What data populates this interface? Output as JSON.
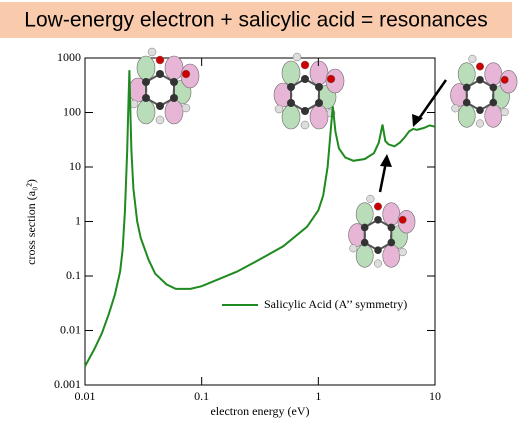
{
  "chart_data": {
    "type": "line",
    "title": "Low-energy electron + salicylic acid = resonances",
    "x_label": "electron energy (eV)",
    "y_label": "cross section (a₀²)",
    "log_x": true,
    "log_y": true,
    "legend": true,
    "xlim": [
      0.01,
      10
    ],
    "xticks": [
      0.01,
      0.1,
      1,
      10
    ],
    "ylim": [
      0.001,
      1000
    ],
    "yticks": [
      0.001,
      0.01,
      0.1,
      1,
      10,
      100,
      1000
    ],
    "x": [
      0.01,
      0.012,
      0.014,
      0.016,
      0.018,
      0.02,
      0.021,
      0.022,
      0.023,
      0.0235,
      0.024,
      0.0245,
      0.025,
      0.026,
      0.028,
      0.03,
      0.035,
      0.04,
      0.05,
      0.06,
      0.08,
      0.1,
      0.2,
      0.3,
      0.5,
      0.8,
      1.0,
      1.1,
      1.2,
      1.27,
      1.33,
      1.4,
      1.5,
      1.7,
      2.0,
      2.5,
      3.0,
      3.3,
      3.55,
      3.75,
      4.0,
      4.5,
      5.0,
      5.5,
      6.0,
      6.5,
      7.0,
      8.0,
      9.0,
      10
    ],
    "series": [
      {
        "name": "Salicylic Acid (A’’ symmetry)",
        "color": "#1f8a1f",
        "values": [
          0.0022,
          0.0045,
          0.009,
          0.02,
          0.045,
          0.12,
          0.3,
          1.5,
          20,
          120,
          600,
          100,
          20,
          4,
          1,
          0.5,
          0.2,
          0.11,
          0.07,
          0.058,
          0.058,
          0.065,
          0.12,
          0.19,
          0.35,
          0.8,
          1.6,
          3,
          10,
          40,
          130,
          45,
          22,
          15,
          13,
          14,
          18,
          28,
          60,
          30,
          26,
          24,
          28,
          35,
          45,
          50,
          48,
          52,
          58,
          55
        ]
      }
    ]
  }
}
